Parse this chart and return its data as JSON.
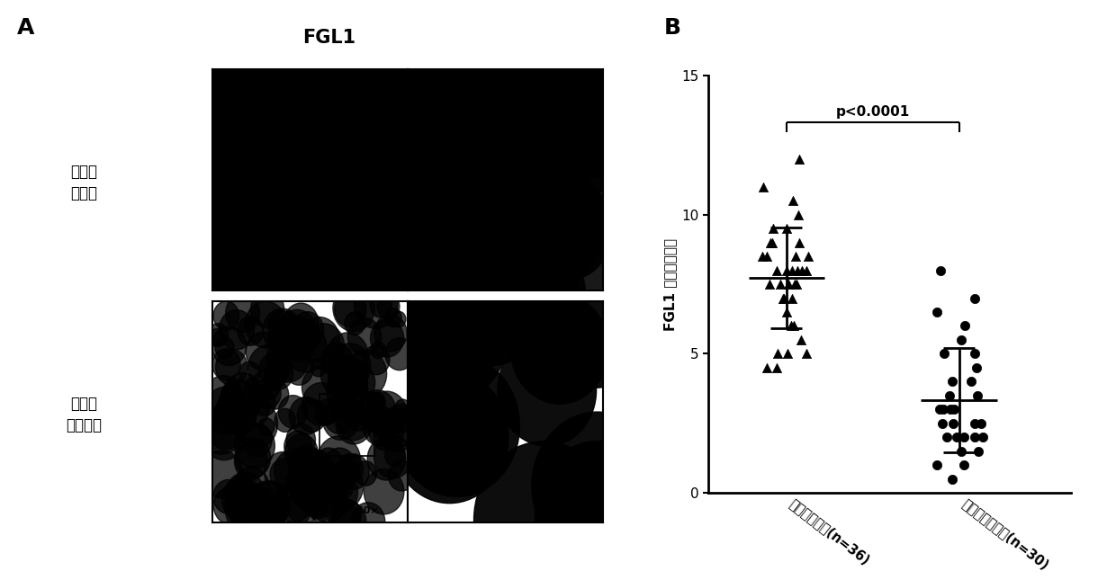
{
  "panel_A_label": "A",
  "panel_B_label": "B",
  "fgl1_title": "FGL1",
  "row1_label": "淋巴结\n转移组",
  "row2_label": "淋巴结\n未转移组",
  "ylabel": "FGL1 免疫反应评分",
  "group1_label": "淋巴结转移组(n=36)",
  "group2_label": "淋巴结未转移组(n=30)",
  "pvalue_text": "p<0.0001",
  "ylim": [
    0,
    15
  ],
  "yticks": [
    0,
    5,
    10,
    15
  ],
  "group1_data": [
    12.0,
    11.0,
    10.5,
    10.0,
    9.5,
    9.5,
    9.0,
    9.0,
    9.0,
    8.5,
    8.5,
    8.5,
    8.5,
    8.0,
    8.0,
    8.0,
    8.0,
    8.0,
    8.0,
    7.5,
    7.5,
    7.5,
    7.5,
    7.5,
    7.0,
    7.0,
    7.0,
    6.5,
    6.0,
    6.0,
    5.5,
    5.0,
    5.0,
    5.0,
    4.5,
    4.5
  ],
  "group2_data": [
    8.0,
    7.0,
    6.5,
    6.0,
    5.5,
    5.0,
    5.0,
    4.5,
    4.0,
    4.0,
    3.5,
    3.5,
    3.0,
    3.0,
    3.0,
    3.0,
    2.5,
    2.5,
    2.5,
    2.5,
    2.0,
    2.0,
    2.0,
    2.0,
    2.0,
    1.5,
    1.5,
    1.0,
    1.0,
    0.5
  ],
  "marker_color": "#000000",
  "background_color": "#ffffff",
  "axis_linewidth": 2.0
}
